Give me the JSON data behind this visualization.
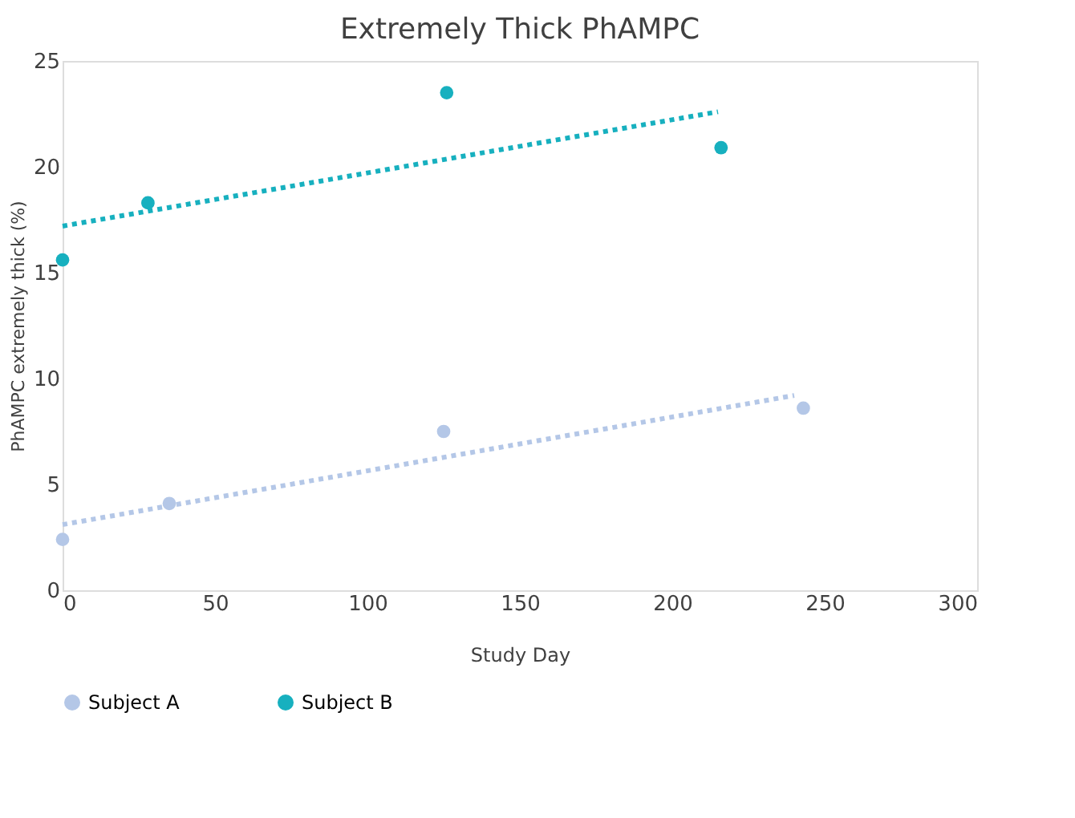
{
  "chart_data": {
    "type": "scatter",
    "title": "Extremely Thick PhAMPC",
    "xlabel": "Study Day",
    "ylabel": "PhAMPC extremely thick  (%)",
    "xlim": [
      0,
      300
    ],
    "xticks": [
      0,
      50,
      100,
      150,
      200,
      250,
      300
    ],
    "ylim": [
      0,
      25
    ],
    "yticks": [
      0,
      5,
      10,
      15,
      20,
      25
    ],
    "grid": false,
    "legend": "bottom",
    "series": [
      {
        "name": "Subject A",
        "marker": "circle",
        "color": "#b4c7e7",
        "x": [
          0,
          35,
          125,
          243
        ],
        "values": [
          2.4,
          4.1,
          7.5,
          8.6
        ]
      },
      {
        "name": "Subject B",
        "marker": "circle",
        "color": "#17b0bf",
        "x": [
          0,
          28,
          126,
          216
        ],
        "values": [
          15.6,
          18.3,
          23.5,
          20.9
        ]
      },
      {
        "type": "line",
        "marker": "none",
        "line_style": "dotted",
        "color": "#b4c7e7",
        "x": [
          0,
          240
        ],
        "values": [
          3.1,
          9.2
        ]
      },
      {
        "type": "line",
        "marker": "none",
        "line_style": "dotted",
        "color": "#17b0bf",
        "x": [
          0,
          215
        ],
        "values": [
          17.2,
          22.6
        ]
      }
    ]
  }
}
